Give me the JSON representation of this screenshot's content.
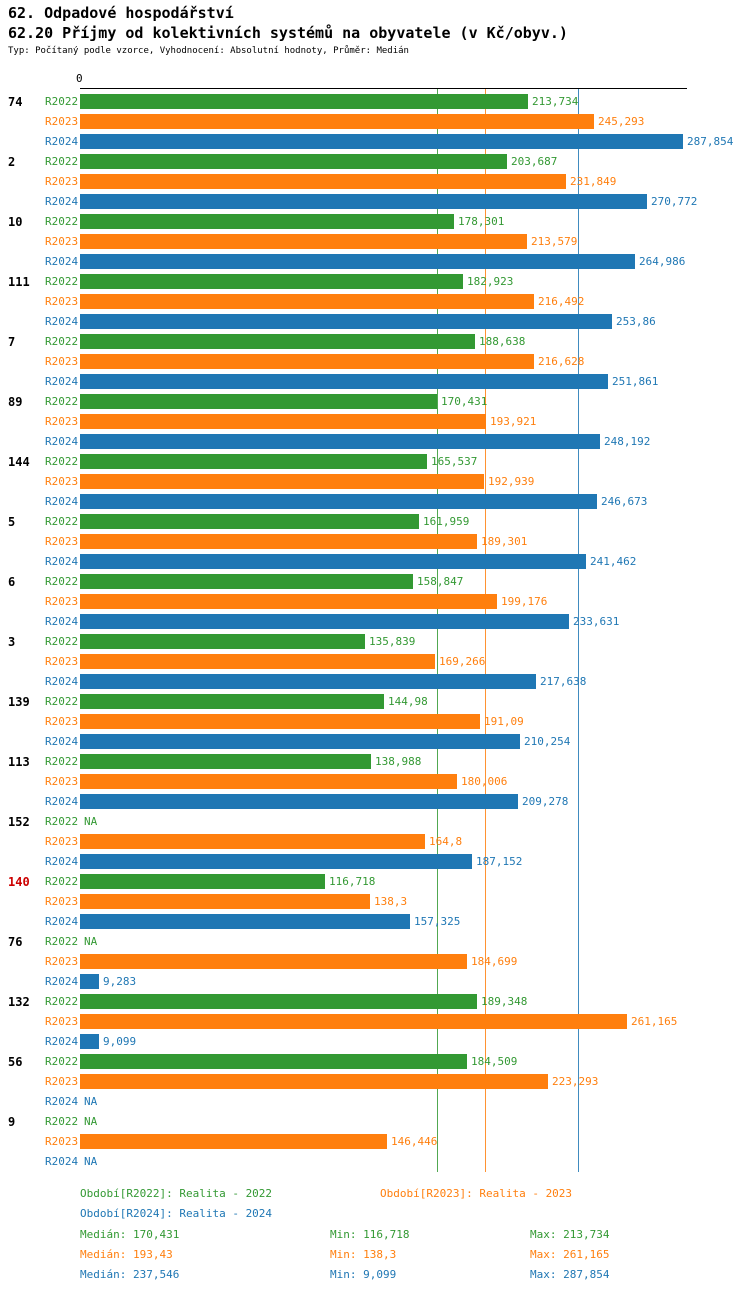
{
  "title": "62. Odpadové hospodářství",
  "subtitle": "62.20 Příjmy od kolektivních systémů na obyvatele (v Kč/obyv.)",
  "meta": "Typ: Počítaný podle vzorce, Vyhodnocení: Absolutní hodnoty, Průměr: Medián",
  "colors": {
    "r2022": "#339933",
    "r2023": "#ff7f0e",
    "r2024": "#1f77b4",
    "highlight": "#cc0000",
    "axis": "#000000"
  },
  "axis": {
    "zero_label": "0"
  },
  "chart_data": {
    "type": "bar",
    "orientation": "horizontal",
    "unit": "Kč/obyv.",
    "series_labels": [
      "R2022",
      "R2023",
      "R2024"
    ],
    "xmax": 287.854,
    "medians": [
      170.431,
      193.43,
      237.546
    ],
    "groups": [
      {
        "label": "74",
        "highlight": false,
        "values": [
          213.734,
          245.293,
          287.854
        ],
        "display": [
          "213,734",
          "245,293",
          "287,854"
        ]
      },
      {
        "label": "2",
        "highlight": false,
        "values": [
          203.687,
          231.849,
          270.772
        ],
        "display": [
          "203,687",
          "231,849",
          "270,772"
        ]
      },
      {
        "label": "10",
        "highlight": false,
        "values": [
          178.301,
          213.579,
          264.986
        ],
        "display": [
          "178,301",
          "213,579",
          "264,986"
        ]
      },
      {
        "label": "111",
        "highlight": false,
        "values": [
          182.923,
          216.492,
          253.86
        ],
        "display": [
          "182,923",
          "216,492",
          "253,86"
        ]
      },
      {
        "label": "7",
        "highlight": false,
        "values": [
          188.638,
          216.628,
          251.861
        ],
        "display": [
          "188,638",
          "216,628",
          "251,861"
        ]
      },
      {
        "label": "89",
        "highlight": false,
        "values": [
          170.431,
          193.921,
          248.192
        ],
        "display": [
          "170,431",
          "193,921",
          "248,192"
        ]
      },
      {
        "label": "144",
        "highlight": false,
        "values": [
          165.537,
          192.939,
          246.673
        ],
        "display": [
          "165,537",
          "192,939",
          "246,673"
        ]
      },
      {
        "label": "5",
        "highlight": false,
        "values": [
          161.959,
          189.301,
          241.462
        ],
        "display": [
          "161,959",
          "189,301",
          "241,462"
        ]
      },
      {
        "label": "6",
        "highlight": false,
        "values": [
          158.847,
          199.176,
          233.631
        ],
        "display": [
          "158,847",
          "199,176",
          "233,631"
        ]
      },
      {
        "label": "3",
        "highlight": false,
        "values": [
          135.839,
          169.266,
          217.638
        ],
        "display": [
          "135,839",
          "169,266",
          "217,638"
        ]
      },
      {
        "label": "139",
        "highlight": false,
        "values": [
          144.98,
          191.09,
          210.254
        ],
        "display": [
          "144,98",
          "191,09",
          "210,254"
        ]
      },
      {
        "label": "113",
        "highlight": false,
        "values": [
          138.988,
          180.006,
          209.278
        ],
        "display": [
          "138,988",
          "180,006",
          "209,278"
        ]
      },
      {
        "label": "152",
        "highlight": false,
        "values": [
          null,
          164.8,
          187.152
        ],
        "display": [
          "NA",
          "164,8",
          "187,152"
        ]
      },
      {
        "label": "140",
        "highlight": true,
        "values": [
          116.718,
          138.3,
          157.325
        ],
        "display": [
          "116,718",
          "138,3",
          "157,325"
        ]
      },
      {
        "label": "76",
        "highlight": false,
        "values": [
          null,
          184.699,
          9.283
        ],
        "display": [
          "NA",
          "184,699",
          "9,283"
        ]
      },
      {
        "label": "132",
        "highlight": false,
        "values": [
          189.348,
          261.165,
          9.099
        ],
        "display": [
          "189,348",
          "261,165",
          "9,099"
        ]
      },
      {
        "label": "56",
        "highlight": false,
        "values": [
          184.509,
          223.293,
          null
        ],
        "display": [
          "184,509",
          "223,293",
          "NA"
        ]
      },
      {
        "label": "9",
        "highlight": false,
        "values": [
          null,
          146.446,
          null
        ],
        "display": [
          "NA",
          "146,446",
          "NA"
        ]
      }
    ]
  },
  "legend": {
    "items": [
      {
        "series": "R2022",
        "label": "Období[R2022]: Realita - 2022"
      },
      {
        "series": "R2023",
        "label": "Období[R2023]: Realita - 2023"
      },
      {
        "series": "R2024",
        "label": "Období[R2024]: Realita - 2024"
      }
    ]
  },
  "stats": [
    {
      "series": "R2022",
      "median": "Medián: 170,431",
      "min": "Min: 116,718",
      "max": "Max: 213,734"
    },
    {
      "series": "R2023",
      "median": "Medián: 193,43",
      "min": "Min: 138,3",
      "max": "Max: 261,165"
    },
    {
      "series": "R2024",
      "median": "Medián: 237,546",
      "min": "Min: 9,099",
      "max": "Max: 287,854"
    }
  ]
}
